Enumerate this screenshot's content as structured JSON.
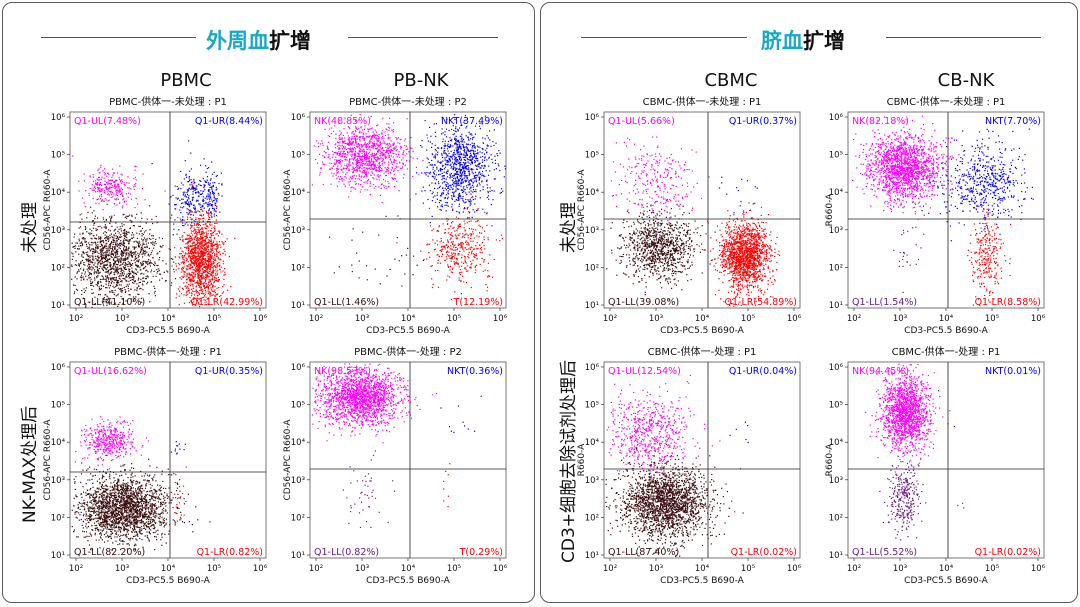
{
  "panels": [
    {
      "id": "left",
      "title_cyan": "外周血",
      "title_dark": "扩增",
      "columns": [
        "PBMC",
        "PB-NK"
      ],
      "rows": [
        "未处理",
        "NK-MAX处理后"
      ]
    },
    {
      "id": "right",
      "title_cyan": "脐血",
      "title_dark": "扩增",
      "columns": [
        "CBMC",
        "CB-NK"
      ],
      "rows": [
        "未处理",
        "CD3+细胞去除试剂处理后"
      ]
    }
  ],
  "colors": {
    "magenta": "#ff00ff",
    "blue": "#0000e6",
    "red": "#ff0000",
    "dark": "#3a0d0d",
    "ll_purple": "#6a1b8a",
    "title_cyan": "#19a9c6"
  },
  "chart_data": [
    {
      "type": "scatter",
      "title": "PBMC-供体一-未处理 : P1",
      "xlabel": "CD3-PC5.5 B690-A",
      "ylabel": "CD56-APC R660-A",
      "xticks": [
        "10²",
        "10³",
        "10⁴",
        "10⁵",
        "10⁶"
      ],
      "yticks": [
        "10¹",
        "10²",
        "10³",
        "10⁴",
        "10⁵",
        "10⁶"
      ],
      "quadrants": {
        "UL": {
          "label": "Q1-UL(7.48%)",
          "value": 7.48
        },
        "UR": {
          "label": "Q1-UR(8.44%)",
          "value": 8.44
        },
        "LL": {
          "label": "Q1-LL(41.10%)",
          "value": 41.1
        },
        "LR": {
          "label": "Q1-LR(42.99%)",
          "value": 42.99
        }
      }
    },
    {
      "type": "scatter",
      "title": "PBMC-供体一-未处理 : P2",
      "xlabel": "CD3-PC5.5 B690-A",
      "ylabel": "CD56-APC R660-A",
      "xticks": [
        "10²",
        "10³",
        "10⁴",
        "10⁵",
        "10⁶"
      ],
      "yticks": [
        "10¹",
        "10²",
        "10³",
        "10⁴",
        "10⁵",
        "10⁶"
      ],
      "quadrants": {
        "UL": {
          "label": "NK(48.85%)",
          "value": 48.85
        },
        "UR": {
          "label": "NKT(37.49%)",
          "value": 37.49
        },
        "LL": {
          "label": "Q1-LL(1.46%)",
          "value": 1.46
        },
        "LR": {
          "label": "T(12.19%)",
          "value": 12.19
        }
      }
    },
    {
      "type": "scatter",
      "title": "PBMC-供体一-处理 : P1",
      "xlabel": "CD3-PC5.5 B690-A",
      "ylabel": "CD56-APC R660-A",
      "xticks": [
        "10²",
        "10³",
        "10⁴",
        "10⁵",
        "10⁶"
      ],
      "yticks": [
        "10¹",
        "10²",
        "10³",
        "10⁴",
        "10⁵",
        "10⁶"
      ],
      "quadrants": {
        "UL": {
          "label": "Q1-UL(16.62%)",
          "value": 16.62
        },
        "UR": {
          "label": "Q1-UR(0.35%)",
          "value": 0.35
        },
        "LL": {
          "label": "Q1-LL(82.20%)",
          "value": 82.2
        },
        "LR": {
          "label": "Q1-LR(0.82%)",
          "value": 0.82
        }
      }
    },
    {
      "type": "scatter",
      "title": "PBMC-供体一-处理 : P2",
      "xlabel": "CD3-PC5.5 B690-A",
      "ylabel": "CD56-APC R660-A",
      "xticks": [
        "10²",
        "10³",
        "10⁴",
        "10⁵",
        "10⁶"
      ],
      "yticks": [
        "10¹",
        "10²",
        "10³",
        "10⁴",
        "10⁵",
        "10⁶"
      ],
      "quadrants": {
        "UL": {
          "label": "NK(98.53%)",
          "value": 98.53
        },
        "UR": {
          "label": "NKT(0.36%)",
          "value": 0.36
        },
        "LL": {
          "label": "Q1-LL(0.82%)",
          "value": 0.82
        },
        "LR": {
          "label": "T(0.29%)",
          "value": 0.29
        }
      }
    },
    {
      "type": "scatter",
      "title": "CBMC-供体一-未处理 : P1",
      "xlabel": "CD3-PC5.5 B690-A",
      "ylabel": "CD56-APC R660-A",
      "xticks": [
        "10²",
        "10³",
        "10⁴",
        "10⁵",
        "10⁶"
      ],
      "yticks": [
        "10¹",
        "10²",
        "10³",
        "10⁴",
        "10⁵",
        "10⁶"
      ],
      "quadrants": {
        "UL": {
          "label": "Q1-UL(5.66%)",
          "value": 5.66
        },
        "UR": {
          "label": "Q1-UR(0.37%)",
          "value": 0.37
        },
        "LL": {
          "label": "Q1-LL(39.08%)",
          "value": 39.08
        },
        "LR": {
          "label": "Q1-LR(54.89%)",
          "value": 54.89
        }
      }
    },
    {
      "type": "scatter",
      "title": "CBMC-供体一-未处理 : P1",
      "xlabel": "CD3-PC5.5 B690-A",
      "ylabel": "R660-A",
      "xticks": [
        "10²",
        "10³",
        "10⁴",
        "10⁵",
        "10⁶"
      ],
      "yticks": [
        "10¹",
        "10²",
        "10³",
        "10⁴",
        "10⁵",
        "10⁶"
      ],
      "quadrants": {
        "UL": {
          "label": "NK(82.18%)",
          "value": 82.18
        },
        "UR": {
          "label": "NKT(7.70%)",
          "value": 7.7
        },
        "LL": {
          "label": "Q1-LL(1.54%)",
          "value": 1.54
        },
        "LR": {
          "label": "Q1-LR(8.58%)",
          "value": 8.58
        }
      }
    },
    {
      "type": "scatter",
      "title": "CBMC-供体一-处理 : P1",
      "xlabel": "CD3-PC5.5 B690-A",
      "ylabel": "R660-A",
      "xticks": [
        "10²",
        "10³",
        "10⁴",
        "10⁵",
        "10⁶"
      ],
      "yticks": [
        "10¹",
        "10²",
        "10³",
        "10⁴",
        "10⁵",
        "10⁶"
      ],
      "quadrants": {
        "UL": {
          "label": "Q1-UL(12.54%)",
          "value": 12.54
        },
        "UR": {
          "label": "Q1-UR(0.04%)",
          "value": 0.04
        },
        "LL": {
          "label": "Q1-LL(87.40%)",
          "value": 87.4
        },
        "LR": {
          "label": "Q1-LR(0.02%)",
          "value": 0.02
        }
      }
    },
    {
      "type": "scatter",
      "title": "CBMC-供体一-处理 : P1",
      "xlabel": "CD3-PC5.5 B690-A",
      "ylabel": "R660-A",
      "xticks": [
        "10²",
        "10³",
        "10⁴",
        "10⁵",
        "10⁶"
      ],
      "yticks": [
        "10¹",
        "10²",
        "10³",
        "10⁴",
        "10⁵",
        "10⁶"
      ],
      "quadrants": {
        "UL": {
          "label": "NK(94.45%)",
          "value": 94.45
        },
        "UR": {
          "label": "NKT(0.01%)",
          "value": 0.01
        },
        "LL": {
          "label": "Q1-LL(5.52%)",
          "value": 5.52
        },
        "LR": {
          "label": "Q1-LR(0.02%)",
          "value": 0.02
        }
      }
    }
  ]
}
